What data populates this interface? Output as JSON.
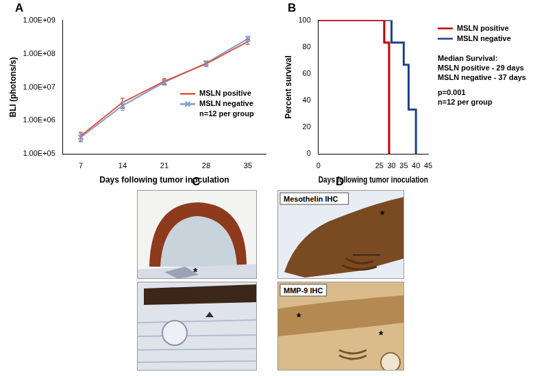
{
  "chart_data": [
    {
      "type": "line",
      "x_label": "Days following tumor inoculation",
      "y_label": "BLI (photons/s)",
      "x": [
        7,
        14,
        21,
        28,
        35
      ],
      "series": [
        {
          "name": "MSLN positive",
          "color": "#e0533c",
          "marker": "none",
          "line_style": "solid",
          "values": [
            350000,
            3500000,
            15000000,
            50000000,
            230000000
          ],
          "errors": [
            100000,
            1200000,
            3000000,
            8000000,
            40000000
          ]
        },
        {
          "name": "MSLN negative",
          "color": "#7b9bd1",
          "marker": "x",
          "line_style": "solid",
          "values": [
            320000,
            2800000,
            14000000,
            52000000,
            280000000
          ],
          "errors": [
            90000,
            800000,
            2500000,
            9000000,
            50000000
          ]
        }
      ],
      "annotations": [
        "n=12 per group"
      ],
      "xlim": [
        4,
        38
      ],
      "xticks": [
        7,
        14,
        21,
        28,
        35
      ],
      "ylim": [
        100000,
        1000000000
      ],
      "yticks": [
        {
          "value": 100000,
          "label": "1.00E+05"
        },
        {
          "value": 1000000,
          "label": "1.00E+06"
        },
        {
          "value": 10000000,
          "label": "1.00E+07"
        },
        {
          "value": 100000000,
          "label": "1.00E+08"
        },
        {
          "value": 1000000000,
          "label": "1.00E+09"
        }
      ],
      "log": "y",
      "grid": false,
      "legend": "right"
    },
    {
      "type": "line",
      "x_label": "Days following tumor inoculation",
      "y_label": "Percent survival",
      "series": [
        {
          "name": "MSLN positive",
          "color": "#c00000",
          "marker": "none",
          "line_style": "step",
          "x": [
            0,
            27,
            29
          ],
          "values": [
            100,
            83.3,
            0
          ]
        },
        {
          "name": "MSLN negative",
          "color": "#1f3f8f",
          "marker": "none",
          "line_style": "step",
          "x": [
            0,
            30,
            35,
            37,
            40
          ],
          "values": [
            100,
            83.3,
            66.7,
            33.3,
            0
          ]
        }
      ],
      "annotations": [
        "Median Survival:",
        "MSLN positive - 29 days",
        "MSLN negative - 37 days",
        "p=0.001",
        "n=12 per group"
      ],
      "xlim": [
        0,
        45
      ],
      "xticks": [
        0,
        25,
        30,
        35,
        40,
        45
      ],
      "ylim": [
        0,
        100
      ],
      "yticks": [
        0,
        20,
        40,
        60,
        80,
        100
      ],
      "grid": false,
      "legend": "upper right"
    }
  ],
  "panel_labels": [
    "A",
    "B",
    "C",
    "D"
  ],
  "images": [
    {
      "panel": "C",
      "annotations": [
        "*"
      ]
    },
    {
      "panel": "C"
    },
    {
      "panel": "D",
      "label": "Mesothelin IHC",
      "annotations": [
        "*"
      ]
    },
    {
      "panel": "D",
      "label": "MMP-9 IHC",
      "annotations": [
        "*",
        "*"
      ]
    }
  ]
}
